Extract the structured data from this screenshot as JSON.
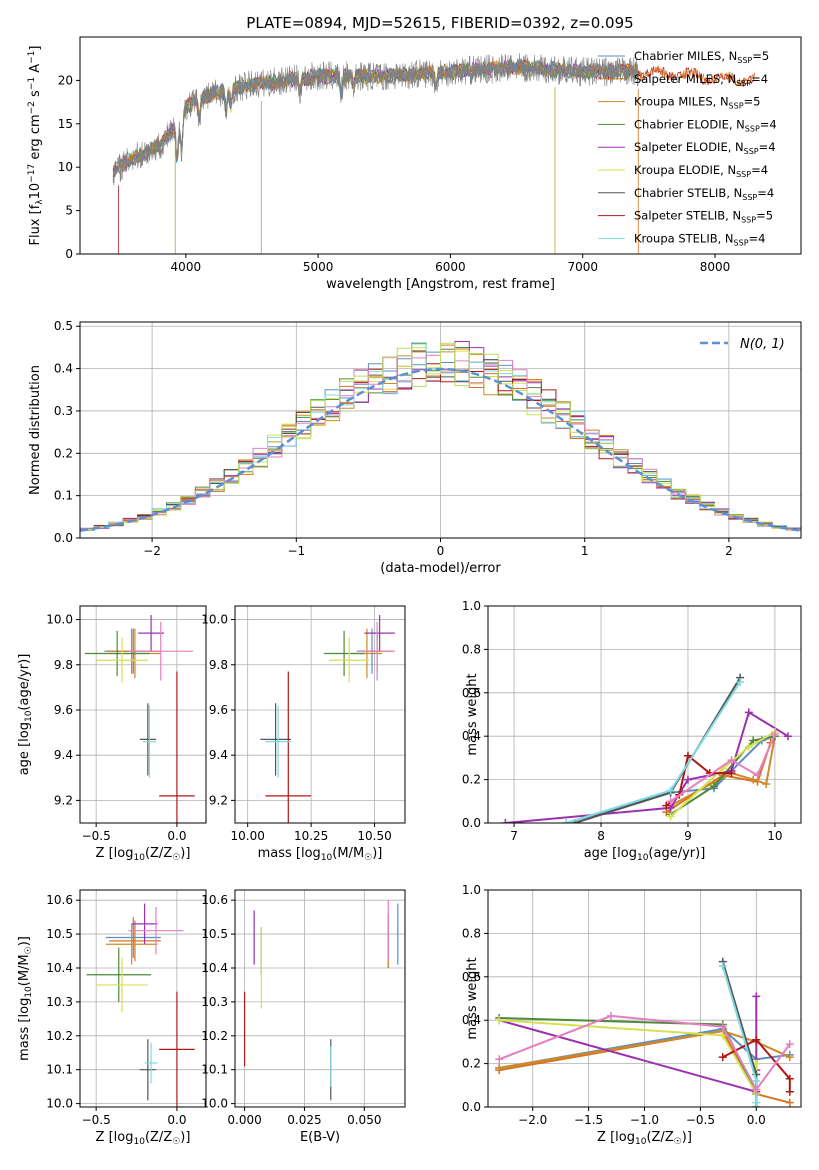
{
  "figure_title": "PLATE=0894, MJD=52615, FIBERID=0392, z=0.095",
  "colors": {
    "Chabrier MILES": "#5b8ec9",
    "Salpeter MILES": "#d9731f",
    "Kroupa MILES": "#cd8a2a",
    "Chabrier ELODIE": "#4d8b3a",
    "Salpeter ELODIE": "#9b30b0",
    "Kroupa ELODIE": "#d7e04e",
    "Chabrier STELIB": "#555555",
    "Salpeter STELIB": "#b01717",
    "Kroupa STELIB": "#7fd9e0",
    "pink": "#e47fc1",
    "lightgreen": "#b6dd64",
    "normal_line": "#5b8fd6"
  },
  "chart_data": [
    {
      "id": "spectrum",
      "type": "line",
      "title": "PLATE=0894, MJD=52615, FIBERID=0392, z=0.095",
      "xlabel": "wavelength [Angstrom, rest frame]",
      "ylabel": "Flux [f_λ 10^-17 erg cm^-2 s^-1 A^-1]",
      "xlim": [
        3200,
        8650
      ],
      "ylim": [
        0,
        25
      ],
      "xticks": [
        4000,
        5000,
        6000,
        7000,
        8000
      ],
      "yticks": [
        0,
        5,
        10,
        15,
        20
      ],
      "grid": false,
      "legend_position": "upper right",
      "legend": [
        {
          "name": "Chabrier MILES",
          "nssp": "5"
        },
        {
          "name": "Salpeter MILES",
          "nssp": "4"
        },
        {
          "name": "Kroupa MILES",
          "nssp": "5"
        },
        {
          "name": "Chabrier ELODIE",
          "nssp": "4"
        },
        {
          "name": "Salpeter ELODIE",
          "nssp": "4"
        },
        {
          "name": "Kroupa ELODIE",
          "nssp": "4"
        },
        {
          "name": "Chabrier STELIB",
          "nssp": "4"
        },
        {
          "name": "Salpeter STELIB",
          "nssp": "5"
        },
        {
          "name": "Kroupa STELIB",
          "nssp": "4"
        }
      ],
      "data_wavelength_range": [
        3450,
        7420
      ],
      "model_wavelength_range": [
        3450,
        8300
      ],
      "continuum_points": [
        [
          3450,
          9.5
        ],
        [
          3600,
          11
        ],
        [
          3800,
          12.5
        ],
        [
          3950,
          15
        ],
        [
          4000,
          17
        ],
        [
          4200,
          18.5
        ],
        [
          4500,
          19.5
        ],
        [
          5000,
          20.5
        ],
        [
          5500,
          20.5
        ],
        [
          6000,
          21
        ],
        [
          6500,
          21.5
        ],
        [
          7000,
          21
        ],
        [
          7400,
          21
        ],
        [
          8300,
          20
        ]
      ]
    },
    {
      "id": "residuals",
      "type": "line",
      "xlabel": "(data-model)/error",
      "ylabel": "Normed distribution",
      "xlim": [
        -2.5,
        2.5
      ],
      "ylim": [
        0,
        0.51
      ],
      "xticks": [
        -2,
        -1,
        0,
        1,
        2
      ],
      "yticks": [
        0.0,
        0.1,
        0.2,
        0.3,
        0.4,
        0.5
      ],
      "grid": true,
      "legend_position": "upper right",
      "normal_label": "N(0, 1)",
      "bin_width": 0.1
    },
    {
      "id": "age_vs_Z",
      "type": "scatter",
      "xlabel": "Z [log10(Z/Z☉)]",
      "ylabel": "age  [log10(age/yr)]",
      "xlim": [
        -0.6,
        0.18
      ],
      "ylim": [
        9.1,
        10.06
      ],
      "xticks": [
        -0.5,
        0.0
      ],
      "yticks": [
        9.2,
        9.4,
        9.6,
        9.8,
        10.0
      ],
      "grid": true,
      "points": [
        {
          "series": "Chabrier MILES",
          "x": -0.28,
          "y": 9.86,
          "xerr": 0.17,
          "yerr": 0.1
        },
        {
          "series": "Salpeter MILES",
          "x": -0.27,
          "y": 9.86,
          "xerr": 0.17,
          "yerr": 0.1
        },
        {
          "series": "Kroupa MILES",
          "x": -0.26,
          "y": 9.85,
          "xerr": 0.16,
          "yerr": 0.11
        },
        {
          "series": "Chabrier ELODIE",
          "x": -0.37,
          "y": 9.85,
          "xerr": 0.2,
          "yerr": 0.1
        },
        {
          "series": "Salpeter ELODIE",
          "x": -0.16,
          "y": 9.94,
          "xerr": 0.08,
          "yerr": 0.08
        },
        {
          "series": "Kroupa ELODIE",
          "x": -0.34,
          "y": 9.82,
          "xerr": 0.16,
          "yerr": 0.1
        },
        {
          "series": "Chabrier STELIB",
          "x": -0.18,
          "y": 9.47,
          "xerr": 0.05,
          "yerr": 0.16
        },
        {
          "series": "Salpeter STELIB",
          "x": 0.0,
          "y": 9.22,
          "xerr": 0.11,
          "yerr": 0.55
        },
        {
          "series": "Kroupa STELIB",
          "x": -0.17,
          "y": 9.46,
          "xerr": 0.04,
          "yerr": 0.16
        },
        {
          "series": "pink",
          "x": -0.1,
          "y": 9.86,
          "xerr": 0.2,
          "yerr": 0.13
        }
      ]
    },
    {
      "id": "age_vs_mass",
      "type": "scatter",
      "xlabel": "mass [log10(M/M☉)]",
      "ylabel": "",
      "xlim": [
        9.95,
        10.62
      ],
      "ylim": [
        9.1,
        10.06
      ],
      "xticks": [
        10.0,
        10.25,
        10.5
      ],
      "yticks": [
        9.2,
        9.4,
        9.6,
        9.8,
        10.0
      ],
      "grid": true,
      "points": [
        {
          "series": "Chabrier MILES",
          "x": 10.49,
          "y": 9.86,
          "xerr": 0.06,
          "yerr": 0.1
        },
        {
          "series": "Salpeter MILES",
          "x": 10.51,
          "y": 9.86,
          "xerr": 0.06,
          "yerr": 0.1
        },
        {
          "series": "Kroupa MILES",
          "x": 10.47,
          "y": 9.85,
          "xerr": 0.06,
          "yerr": 0.11
        },
        {
          "series": "Chabrier ELODIE",
          "x": 10.38,
          "y": 9.85,
          "xerr": 0.08,
          "yerr": 0.1
        },
        {
          "series": "Salpeter ELODIE",
          "x": 10.52,
          "y": 9.94,
          "xerr": 0.06,
          "yerr": 0.08
        },
        {
          "series": "Kroupa ELODIE",
          "x": 10.4,
          "y": 9.82,
          "xerr": 0.08,
          "yerr": 0.1
        },
        {
          "series": "Chabrier STELIB",
          "x": 10.11,
          "y": 9.47,
          "xerr": 0.06,
          "yerr": 0.16
        },
        {
          "series": "Salpeter STELIB",
          "x": 10.16,
          "y": 9.22,
          "xerr": 0.09,
          "yerr": 0.55
        },
        {
          "series": "Kroupa STELIB",
          "x": 10.12,
          "y": 9.46,
          "xerr": 0.05,
          "yerr": 0.16
        },
        {
          "series": "pink",
          "x": 10.51,
          "y": 9.86,
          "xerr": 0.07,
          "yerr": 0.13
        }
      ]
    },
    {
      "id": "mass_weight_vs_age",
      "type": "line",
      "xlabel": "age  [log10(age/yr)]",
      "ylabel": "mass weight",
      "xlim": [
        6.7,
        10.3
      ],
      "ylim": [
        0.0,
        1.0
      ],
      "xticks": [
        7,
        8,
        9,
        10
      ],
      "yticks": [
        0.0,
        0.2,
        0.4,
        0.6,
        0.8,
        1.0
      ],
      "grid": true,
      "series": [
        {
          "name": "Chabrier MILES",
          "points": [
            [
              7.6,
              0.0
            ],
            [
              8.8,
              0.14
            ],
            [
              9.3,
              0.16
            ],
            [
              9.5,
              0.24
            ],
            [
              9.85,
              0.38
            ],
            [
              10.0,
              0.4
            ]
          ]
        },
        {
          "name": "Salpeter MILES",
          "points": [
            [
              8.75,
              0.05
            ],
            [
              9.4,
              0.22
            ],
            [
              9.8,
              0.19
            ],
            [
              9.95,
              0.37
            ]
          ]
        },
        {
          "name": "Kroupa MILES",
          "points": [
            [
              8.8,
              0.08
            ],
            [
              9.5,
              0.23
            ],
            [
              9.75,
              0.2
            ],
            [
              9.9,
              0.18
            ],
            [
              10.0,
              0.4
            ]
          ]
        },
        {
          "name": "Chabrier ELODIE",
          "points": [
            [
              8.8,
              0.04
            ],
            [
              9.3,
              0.17
            ],
            [
              9.75,
              0.38
            ],
            [
              10.0,
              0.4
            ]
          ]
        },
        {
          "name": "Salpeter ELODIE",
          "points": [
            [
              6.9,
              0.0
            ],
            [
              8.8,
              0.07
            ],
            [
              9.0,
              0.2
            ],
            [
              9.5,
              0.24
            ],
            [
              9.7,
              0.51
            ],
            [
              10.15,
              0.4
            ]
          ]
        },
        {
          "name": "Kroupa ELODIE",
          "points": [
            [
              8.8,
              0.03
            ],
            [
              9.4,
              0.25
            ],
            [
              9.7,
              0.35
            ],
            [
              10.0,
              0.42
            ]
          ]
        },
        {
          "name": "Chabrier STELIB",
          "points": [
            [
              7.7,
              0.0
            ],
            [
              8.8,
              0.14
            ],
            [
              9.6,
              0.67
            ]
          ]
        },
        {
          "name": "Salpeter STELIB",
          "points": [
            [
              8.75,
              0.08
            ],
            [
              8.9,
              0.13
            ],
            [
              9.0,
              0.31
            ],
            [
              9.25,
              0.23
            ],
            [
              9.5,
              0.23
            ]
          ]
        },
        {
          "name": "Kroupa STELIB",
          "points": [
            [
              7.6,
              0.0
            ],
            [
              8.8,
              0.15
            ],
            [
              9.6,
              0.65
            ]
          ]
        },
        {
          "name": "pink",
          "points": [
            [
              8.8,
              0.1
            ],
            [
              9.5,
              0.29
            ],
            [
              9.8,
              0.22
            ],
            [
              10.0,
              0.41
            ]
          ]
        }
      ]
    },
    {
      "id": "mass_vs_Z",
      "type": "scatter",
      "xlabel": "Z [log10(Z/Z☉)]",
      "ylabel": "mass [log10(M/M☉)]",
      "xlim": [
        -0.6,
        0.18
      ],
      "ylim": [
        9.99,
        10.63
      ],
      "xticks": [
        -0.5,
        0.0
      ],
      "yticks": [
        10.0,
        10.1,
        10.2,
        10.3,
        10.4,
        10.5,
        10.6
      ],
      "grid": true,
      "points": [
        {
          "series": "Chabrier MILES",
          "x": -0.27,
          "y": 10.49,
          "xerr": 0.17,
          "yerr": 0.06
        },
        {
          "series": "Salpeter MILES",
          "x": -0.26,
          "y": 10.48,
          "xerr": 0.16,
          "yerr": 0.06
        },
        {
          "series": "Kroupa MILES",
          "x": -0.28,
          "y": 10.47,
          "xerr": 0.16,
          "yerr": 0.06
        },
        {
          "series": "Chabrier ELODIE",
          "x": -0.36,
          "y": 10.38,
          "xerr": 0.2,
          "yerr": 0.08
        },
        {
          "series": "Salpeter ELODIE",
          "x": -0.2,
          "y": 10.53,
          "xerr": 0.08,
          "yerr": 0.06
        },
        {
          "series": "Kroupa ELODIE",
          "x": -0.34,
          "y": 10.35,
          "xerr": 0.16,
          "yerr": 0.08
        },
        {
          "series": "Chabrier STELIB",
          "x": -0.18,
          "y": 10.1,
          "xerr": 0.05,
          "yerr": 0.09
        },
        {
          "series": "Salpeter STELIB",
          "x": 0.0,
          "y": 10.16,
          "xerr": 0.11,
          "yerr": 0.17
        },
        {
          "series": "Kroupa STELIB",
          "x": -0.16,
          "y": 10.12,
          "xerr": 0.04,
          "yerr": 0.06
        },
        {
          "series": "pink",
          "x": -0.13,
          "y": 10.51,
          "xerr": 0.17,
          "yerr": 0.07
        }
      ]
    },
    {
      "id": "mass_vs_EBV",
      "type": "scatter",
      "xlabel": "E(B-V)",
      "ylabel": "",
      "xlim": [
        -0.004,
        0.067
      ],
      "ylim": [
        9.99,
        10.63
      ],
      "xticks": [
        0.0,
        0.025,
        0.05
      ],
      "xtick_labels": [
        "0.000",
        "0.025",
        "0.050"
      ],
      "yticks": [
        10.0,
        10.1,
        10.2,
        10.3,
        10.4,
        10.5,
        10.6
      ],
      "grid": true,
      "points": [
        {
          "series": "Chabrier MILES",
          "x": 0.064,
          "y": 10.5,
          "xerr": 0.0,
          "yerr": 0.09
        },
        {
          "series": "Salpeter MILES",
          "x": 0.06,
          "y": 10.48,
          "xerr": 0.0,
          "yerr": 0.08
        },
        {
          "series": "Kroupa MILES",
          "x": 0.06,
          "y": 10.47,
          "xerr": 0.0,
          "yerr": 0.07
        },
        {
          "series": "Chabrier ELODIE",
          "x": 0.007,
          "y": 10.45,
          "xerr": 0.0,
          "yerr": 0.07
        },
        {
          "series": "Salpeter ELODIE",
          "x": 0.004,
          "y": 10.49,
          "xerr": 0.0,
          "yerr": 0.08
        },
        {
          "series": "Kroupa ELODIE",
          "x": 0.007,
          "y": 10.4,
          "xerr": 0.0,
          "yerr": 0.12
        },
        {
          "series": "Chabrier STELIB",
          "x": 0.036,
          "y": 10.1,
          "xerr": 0.0,
          "yerr": 0.09
        },
        {
          "series": "Salpeter STELIB",
          "x": 0.0,
          "y": 10.22,
          "xerr": 0.0,
          "yerr": 0.11
        },
        {
          "series": "Kroupa STELIB",
          "x": 0.036,
          "y": 10.11,
          "xerr": 0.0,
          "yerr": 0.06
        },
        {
          "series": "pink",
          "x": 0.06,
          "y": 10.51,
          "xerr": 0.0,
          "yerr": 0.09
        }
      ]
    },
    {
      "id": "mass_weight_vs_Z",
      "type": "line",
      "xlabel": "Z [log10(Z/Z☉)]",
      "ylabel": "mass weight",
      "xlim": [
        -2.4,
        0.4
      ],
      "ylim": [
        0.0,
        1.0
      ],
      "xticks": [
        -2.0,
        -1.5,
        -1.0,
        -0.5,
        0.0
      ],
      "yticks": [
        0.0,
        0.2,
        0.4,
        0.6,
        0.8,
        1.0
      ],
      "grid": true,
      "series": [
        {
          "name": "Chabrier MILES",
          "points": [
            [
              -2.3,
              0.18
            ],
            [
              -0.3,
              0.36
            ],
            [
              0.0,
              0.22
            ],
            [
              0.3,
              0.24
            ]
          ]
        },
        {
          "name": "Salpeter MILES",
          "points": [
            [
              -2.3,
              0.17
            ],
            [
              -0.3,
              0.35
            ],
            [
              0.0,
              0.06
            ],
            [
              0.3,
              0.02
            ]
          ]
        },
        {
          "name": "Kroupa MILES",
          "points": [
            [
              -2.3,
              0.18
            ],
            [
              -0.3,
              0.35
            ],
            [
              0.0,
              0.3
            ],
            [
              0.3,
              0.23
            ]
          ]
        },
        {
          "name": "Chabrier ELODIE",
          "points": [
            [
              -2.3,
              0.41
            ],
            [
              -0.3,
              0.38
            ],
            [
              0.0,
              0.06
            ]
          ]
        },
        {
          "name": "Salpeter ELODIE",
          "points": [
            [
              -2.3,
              0.4
            ],
            [
              0.0,
              0.07
            ],
            [
              0.0,
              0.51
            ],
            [
              0.0,
              0.17
            ]
          ]
        },
        {
          "name": "Kroupa ELODIE",
          "points": [
            [
              -2.3,
              0.4
            ],
            [
              -0.3,
              0.33
            ],
            [
              0.0,
              0.06
            ],
            [
              0.0,
              0.2
            ]
          ]
        },
        {
          "name": "Chabrier STELIB",
          "points": [
            [
              -0.3,
              0.67
            ],
            [
              0.0,
              0.15
            ],
            [
              0.0,
              0.0
            ]
          ]
        },
        {
          "name": "Salpeter STELIB",
          "points": [
            [
              -0.3,
              0.23
            ],
            [
              0.0,
              0.31
            ],
            [
              0.3,
              0.13
            ],
            [
              0.3,
              0.07
            ]
          ]
        },
        {
          "name": "Kroupa STELIB",
          "points": [
            [
              -0.3,
              0.65
            ],
            [
              0.0,
              0.12
            ],
            [
              0.0,
              0.02
            ]
          ]
        },
        {
          "name": "pink",
          "points": [
            [
              -2.3,
              0.22
            ],
            [
              -1.3,
              0.42
            ],
            [
              -0.3,
              0.37
            ],
            [
              0.0,
              0.08
            ],
            [
              0.3,
              0.29
            ]
          ]
        }
      ]
    }
  ]
}
